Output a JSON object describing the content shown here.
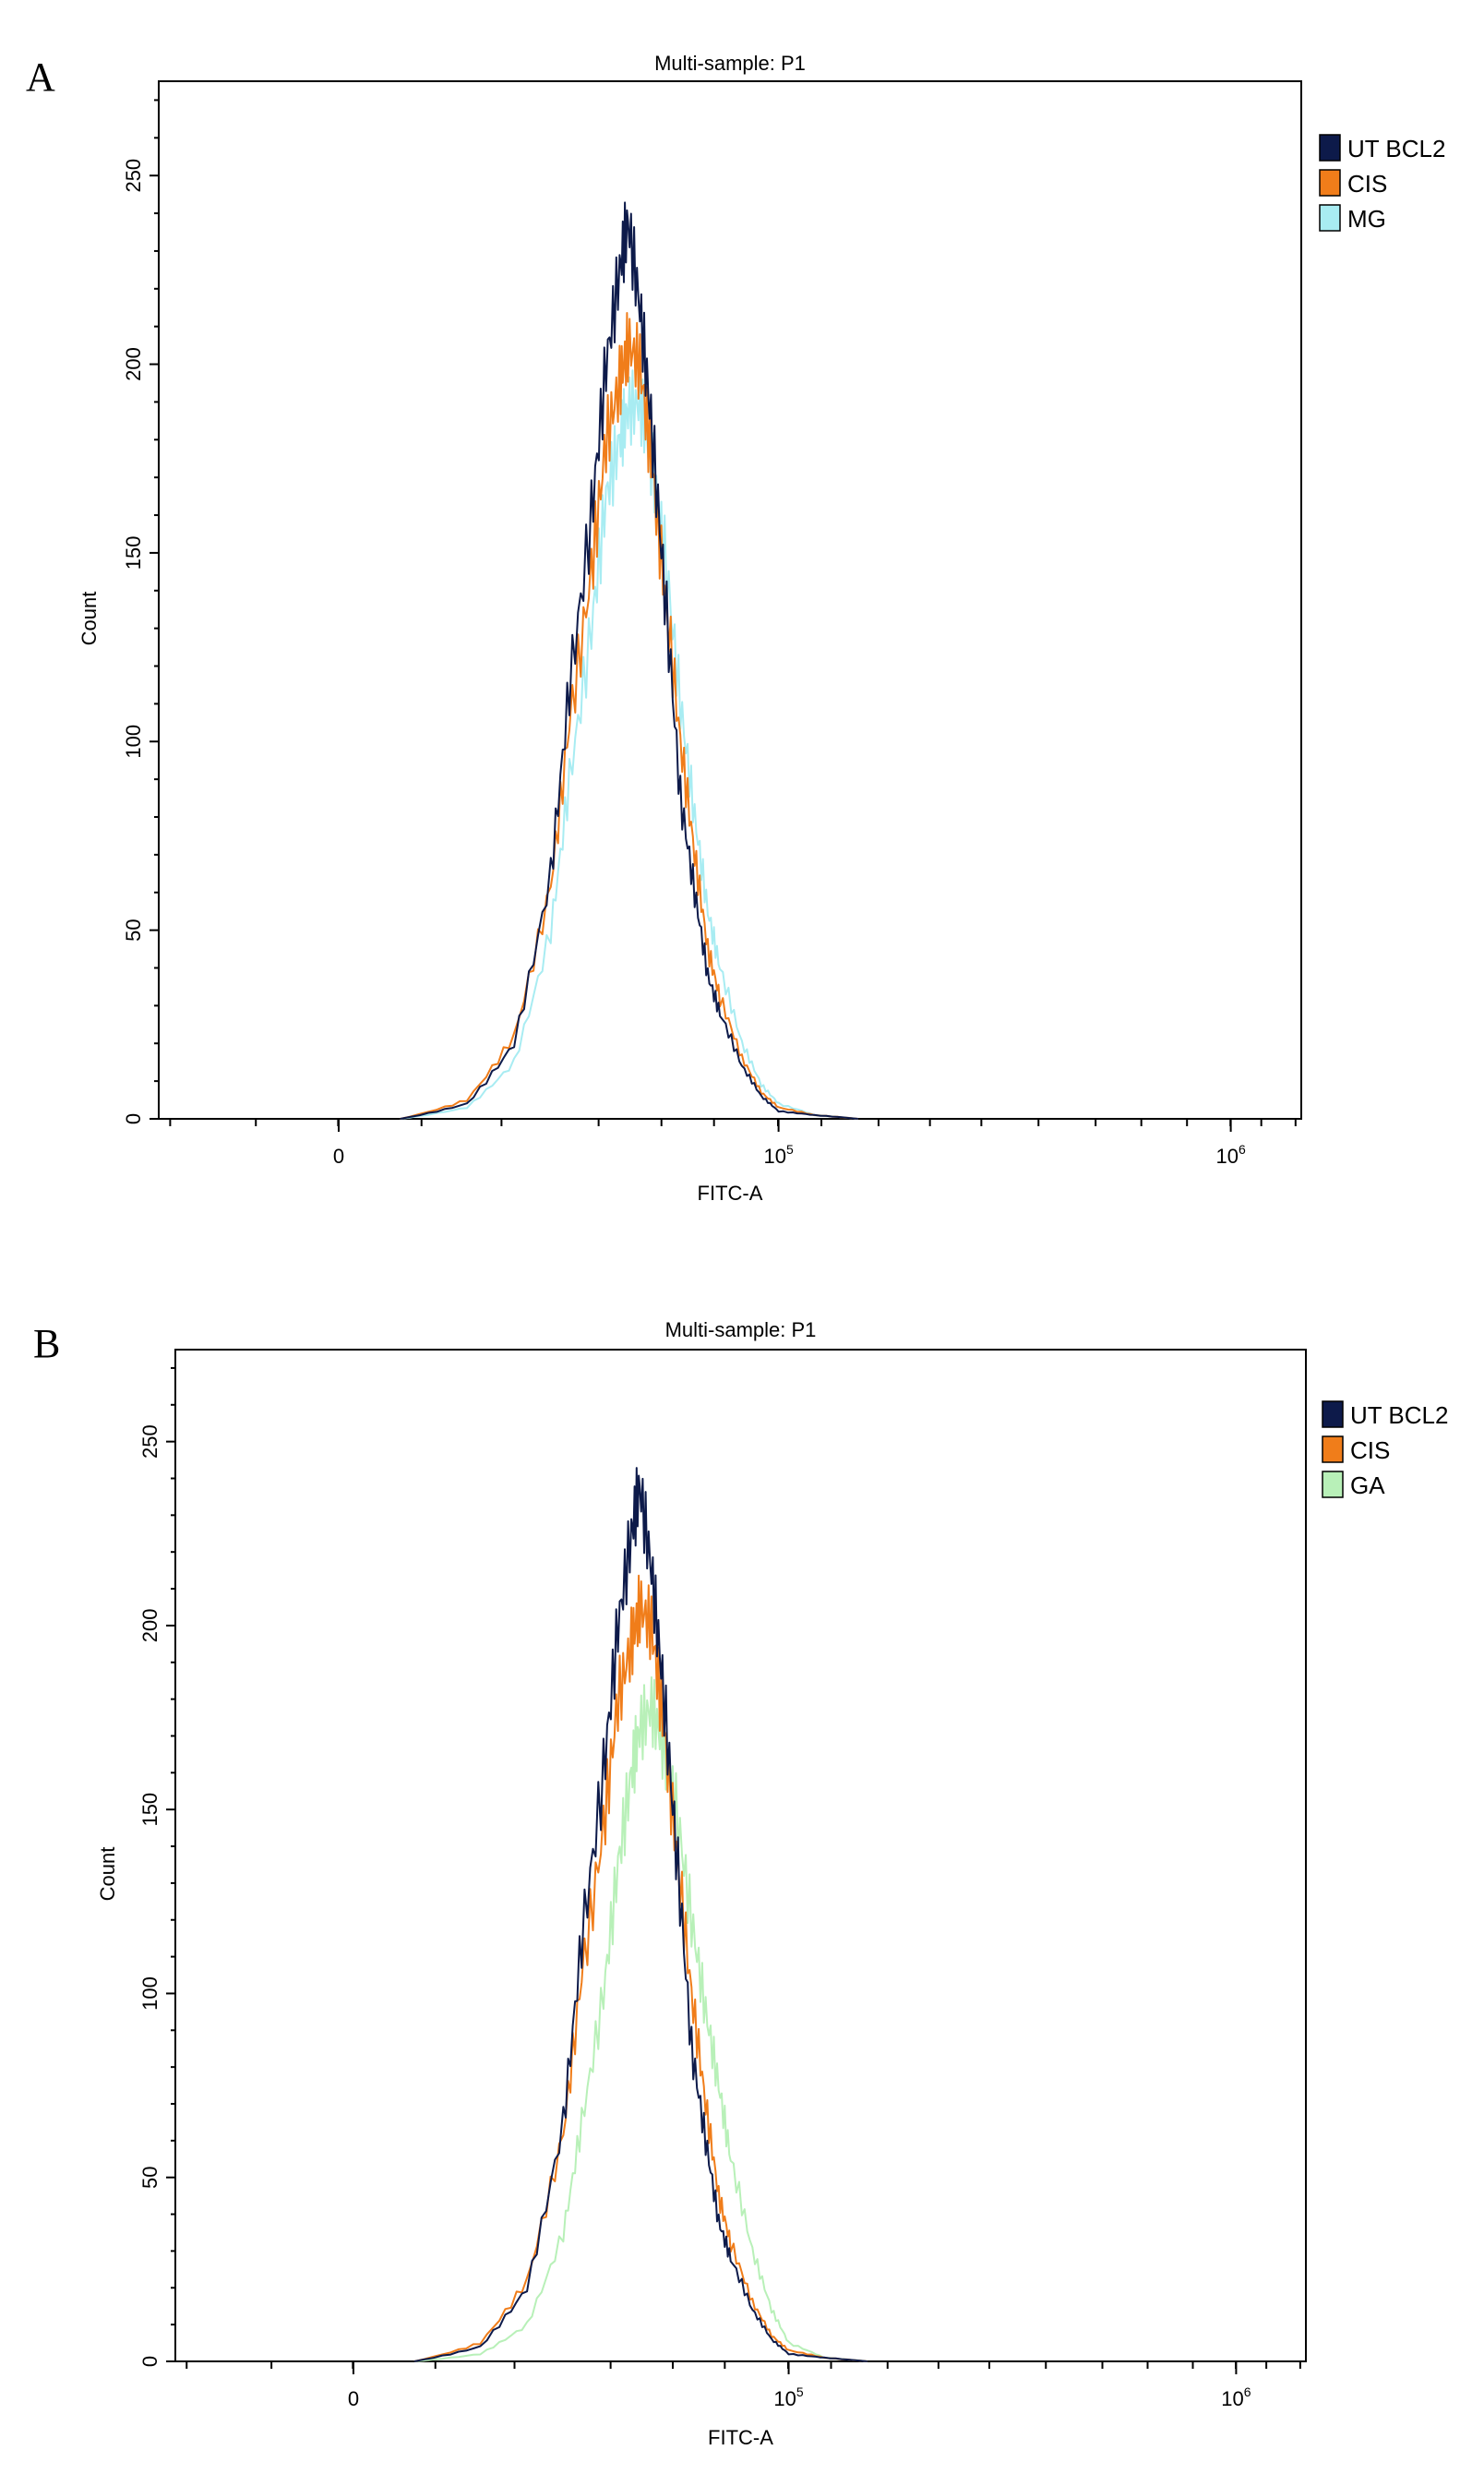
{
  "chart_data": [
    {
      "panel_letter": "A",
      "type": "line",
      "title": "Multi-sample: P1",
      "xlabel": "FITC-A",
      "ylabel": "Count",
      "xscale": "biexponential",
      "xticks": [
        {
          "value": 0,
          "label": "0",
          "sup": ""
        },
        {
          "value": 100000,
          "label": "10",
          "sup": "5"
        },
        {
          "value": 1000000,
          "label": "10",
          "sup": "6"
        }
      ],
      "ylim": [
        0,
        275
      ],
      "yticks": [
        0,
        50,
        100,
        150,
        200,
        250
      ],
      "legend_position": "right",
      "series": [
        {
          "name": "UT BCL2",
          "color": "#0d1a4a",
          "x": [
            10000,
            15000,
            20000,
            25000,
            28000,
            32000,
            35000,
            38000,
            40000,
            43000,
            46000,
            50000,
            55000,
            60000,
            65000,
            70000,
            80000,
            90000,
            100000,
            120000,
            150000
          ],
          "y": [
            0,
            4,
            20,
            65,
            115,
            160,
            200,
            225,
            238,
            215,
            185,
            140,
            85,
            60,
            38,
            28,
            14,
            6,
            2,
            1,
            0
          ]
        },
        {
          "name": "CIS",
          "color": "#f07d1a",
          "x": [
            10000,
            15000,
            20000,
            25000,
            28000,
            32000,
            35000,
            38000,
            40000,
            43000,
            46000,
            50000,
            55000,
            60000,
            65000,
            70000,
            80000,
            90000,
            100000,
            120000,
            150000
          ],
          "y": [
            0,
            5,
            22,
            62,
            105,
            145,
            180,
            195,
            205,
            200,
            175,
            140,
            100,
            70,
            45,
            32,
            16,
            7,
            3,
            1,
            0
          ]
        },
        {
          "name": "MG",
          "color": "#a8ecf2",
          "x": [
            10000,
            15000,
            20000,
            25000,
            28000,
            32000,
            35000,
            38000,
            40000,
            43000,
            46000,
            50000,
            55000,
            60000,
            65000,
            70000,
            80000,
            90000,
            100000,
            120000,
            150000
          ],
          "y": [
            0,
            3,
            15,
            50,
            90,
            130,
            165,
            180,
            188,
            190,
            175,
            150,
            110,
            80,
            55,
            40,
            20,
            9,
            4,
            1,
            0
          ]
        }
      ]
    },
    {
      "panel_letter": "B",
      "type": "line",
      "title": "Multi-sample: P1",
      "xlabel": "FITC-A",
      "ylabel": "Count",
      "xscale": "biexponential",
      "xticks": [
        {
          "value": 0,
          "label": "0",
          "sup": ""
        },
        {
          "value": 100000,
          "label": "10",
          "sup": "5"
        },
        {
          "value": 1000000,
          "label": "10",
          "sup": "6"
        }
      ],
      "ylim": [
        0,
        275
      ],
      "yticks": [
        0,
        50,
        100,
        150,
        200,
        250
      ],
      "legend_position": "right",
      "series": [
        {
          "name": "UT BCL2",
          "color": "#0d1a4a",
          "x": [
            10000,
            15000,
            20000,
            25000,
            28000,
            32000,
            35000,
            38000,
            40000,
            43000,
            46000,
            50000,
            55000,
            60000,
            65000,
            70000,
            80000,
            90000,
            100000,
            120000,
            150000
          ],
          "y": [
            0,
            4,
            20,
            65,
            115,
            160,
            200,
            225,
            238,
            215,
            185,
            140,
            85,
            60,
            38,
            28,
            14,
            6,
            2,
            1,
            0
          ]
        },
        {
          "name": "CIS",
          "color": "#f07d1a",
          "x": [
            10000,
            15000,
            20000,
            25000,
            28000,
            32000,
            35000,
            38000,
            40000,
            43000,
            46000,
            50000,
            55000,
            60000,
            65000,
            70000,
            80000,
            90000,
            100000,
            120000,
            150000
          ],
          "y": [
            0,
            5,
            22,
            62,
            105,
            145,
            180,
            195,
            205,
            200,
            175,
            140,
            100,
            70,
            45,
            32,
            16,
            7,
            3,
            1,
            0
          ]
        },
        {
          "name": "GA",
          "color": "#b8f0b8",
          "x": [
            10000,
            15000,
            20000,
            25000,
            28000,
            32000,
            35000,
            38000,
            40000,
            43000,
            46000,
            50000,
            55000,
            60000,
            65000,
            70000,
            80000,
            90000,
            100000,
            120000,
            150000
          ],
          "y": [
            0,
            2,
            10,
            35,
            65,
            100,
            135,
            160,
            172,
            178,
            168,
            150,
            120,
            95,
            75,
            55,
            30,
            14,
            5,
            1,
            0
          ]
        }
      ]
    }
  ]
}
